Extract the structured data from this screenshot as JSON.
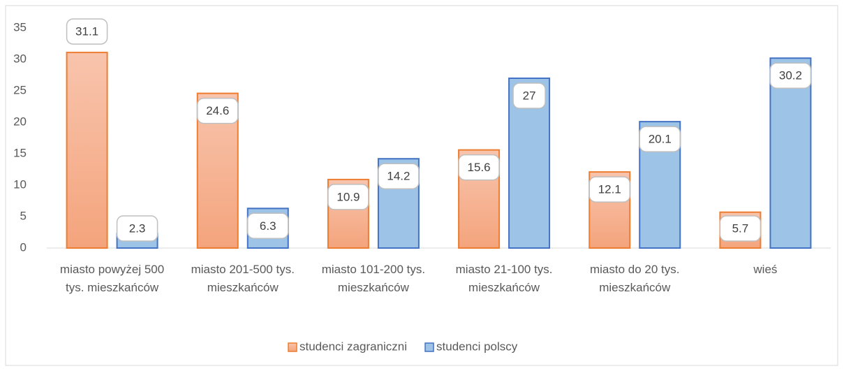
{
  "chart_data": {
    "type": "bar",
    "categories": [
      "miasto powyżej 500 tys. mieszkańców",
      "miasto 201-500 tys. mieszkańców",
      "miasto 101-200 tys. mieszkańców",
      "miasto 21-100 tys. mieszkańców",
      "miasto do 20 tys. mieszkańców",
      "wieś"
    ],
    "series": [
      {
        "name": "studenci zagraniczni",
        "color": "#ed7d31",
        "values": [
          31.1,
          24.6,
          10.9,
          15.6,
          12.1,
          5.7
        ]
      },
      {
        "name": "studenci polscy",
        "color": "#4472c4",
        "values": [
          2.3,
          6.3,
          14.2,
          27,
          20.1,
          30.2
        ]
      }
    ],
    "ylim": [
      0,
      35
    ],
    "yticks": [
      0,
      5,
      10,
      15,
      20,
      25,
      30,
      35
    ],
    "grid": false,
    "legend": "bottom"
  }
}
